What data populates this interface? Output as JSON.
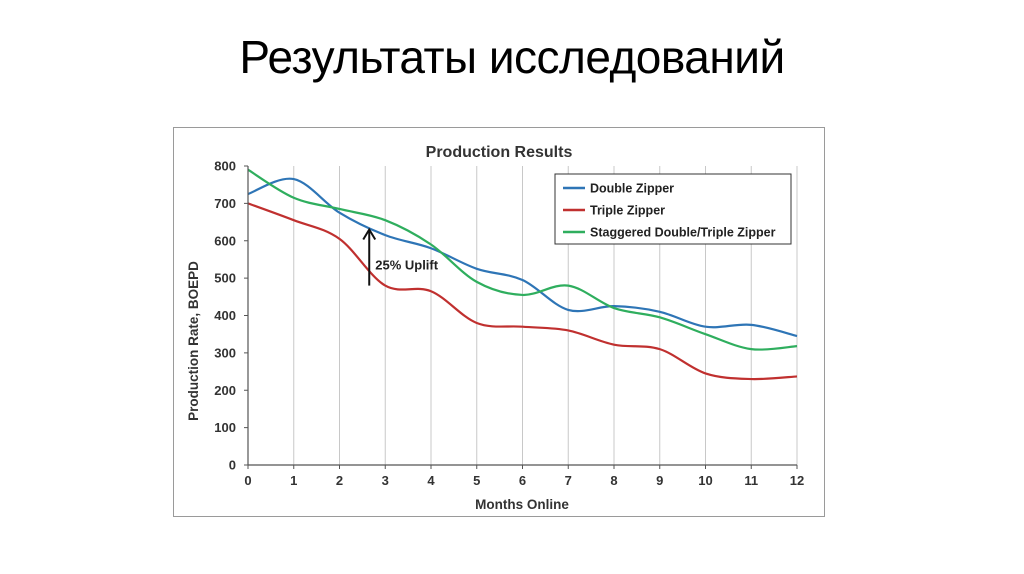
{
  "slide": {
    "title": "Результаты исследований"
  },
  "colors": {
    "double": "#2e75b6",
    "triple": "#c0302f",
    "staggered": "#2fae5e",
    "grid": "#c8c8c8",
    "axis": "#555555"
  },
  "chart_data": {
    "type": "line",
    "title": "Production Results",
    "xlabel": "Months Online",
    "ylabel": "Production Rate, BOEPD",
    "x": [
      0,
      1,
      2,
      3,
      4,
      5,
      6,
      7,
      8,
      9,
      10,
      11,
      12
    ],
    "xlim": [
      0,
      12
    ],
    "ylim": [
      0,
      800
    ],
    "yticks": [
      0,
      100,
      200,
      300,
      400,
      500,
      600,
      700,
      800
    ],
    "grid": "vertical",
    "legend": "top-right",
    "series": [
      {
        "name": "Double Zipper",
        "color": "#2e75b6",
        "values": [
          725,
          765,
          675,
          615,
          580,
          525,
          495,
          415,
          425,
          410,
          370,
          375,
          345
        ]
      },
      {
        "name": "Triple Zipper",
        "color": "#c0302f",
        "values": [
          700,
          655,
          605,
          480,
          465,
          380,
          370,
          360,
          322,
          310,
          245,
          230,
          237
        ]
      },
      {
        "name": "Staggered Double/Triple Zipper",
        "color": "#2fae5e",
        "values": [
          790,
          715,
          685,
          655,
          590,
          490,
          455,
          480,
          420,
          395,
          350,
          310,
          318
        ]
      }
    ],
    "annotations": [
      {
        "text": "25% Uplift",
        "x": 2.65,
        "y_from": 480,
        "y_to": 630
      }
    ]
  }
}
